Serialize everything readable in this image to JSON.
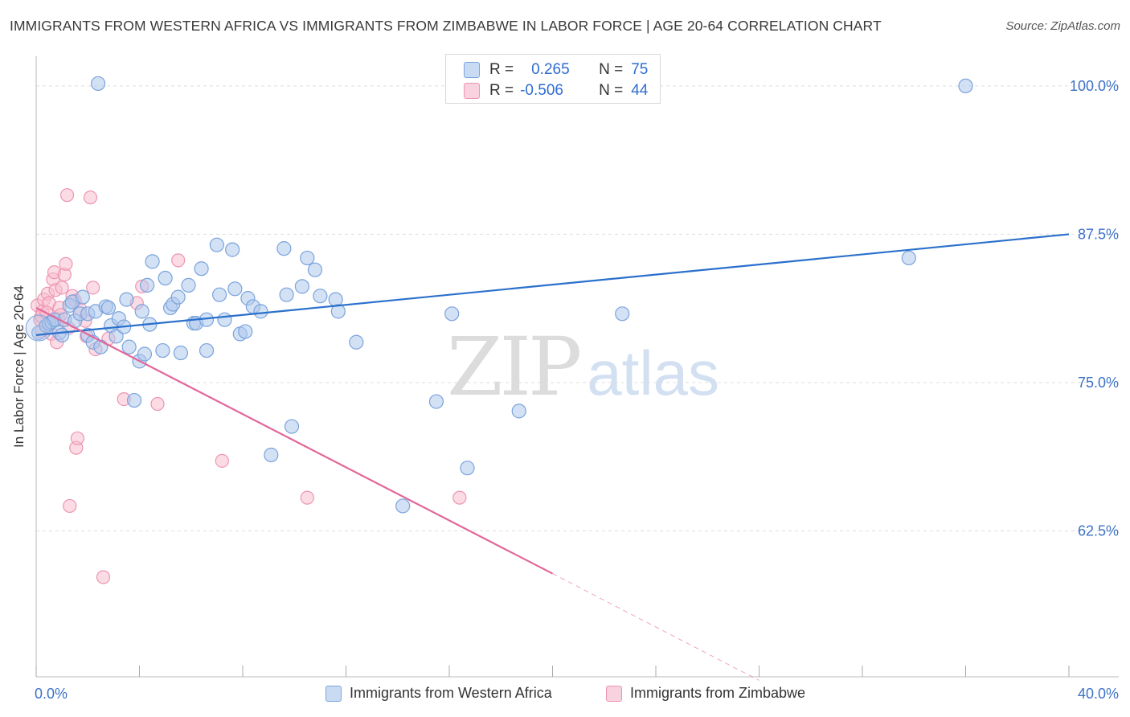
{
  "title": "IMMIGRANTS FROM WESTERN AFRICA VS IMMIGRANTS FROM ZIMBABWE IN LABOR FORCE | AGE 20-64 CORRELATION CHART",
  "source": "Source: ZipAtlas.com",
  "watermark": {
    "zip": "ZIP",
    "atlas": "atlas"
  },
  "stats": [
    {
      "r_label": "R =",
      "r_value": "0.265",
      "n_label": "N =",
      "n_value": "75"
    },
    {
      "r_label": "R =",
      "r_value": "-0.506",
      "n_label": "N =",
      "n_value": "44"
    }
  ],
  "colors": {
    "blue_fill": "#aec8ec",
    "blue_stroke": "#7aa3dd",
    "blue_line": "#2a70cc",
    "pink_fill": "#f7bfd0",
    "pink_stroke": "#ee94b1",
    "pink_line": "#e2679a",
    "axis_text": "#3d72c8",
    "grid": "#dddddd"
  },
  "chart_data": {
    "type": "scatter",
    "title": "IMMIGRANTS FROM WESTERN AFRICA VS IMMIGRANTS FROM ZIMBABWE IN LABOR FORCE | AGE 20-64 CORRELATION CHART",
    "xlabel": "",
    "ylabel": "In Labor Force | Age 20-64",
    "xlim": [
      0,
      40
    ],
    "ylim": [
      50.2,
      102.5
    ],
    "x_tick_labels": [
      "0.0%",
      "40.0%"
    ],
    "y_ticks": [
      62.5,
      75.0,
      87.5,
      100.0
    ],
    "y_tick_labels": [
      "62.5%",
      "75.0%",
      "87.5%",
      "100.0%"
    ],
    "grid": true,
    "legend": "bottom",
    "series": [
      {
        "name": "Immigrants from Western Africa",
        "color": "#aec8ec",
        "points": [
          [
            0.1,
            79.2
          ],
          [
            0.4,
            79.8
          ],
          [
            0.5,
            80.0
          ],
          [
            0.6,
            80.1
          ],
          [
            0.7,
            80.3
          ],
          [
            0.9,
            79.2
          ],
          [
            1.0,
            79.0
          ],
          [
            1.1,
            80.3
          ],
          [
            1.3,
            81.5
          ],
          [
            1.4,
            81.8
          ],
          [
            1.5,
            80.2
          ],
          [
            1.7,
            80.8
          ],
          [
            1.8,
            82.2
          ],
          [
            2.0,
            80.8
          ],
          [
            2.0,
            79.0
          ],
          [
            2.2,
            78.4
          ],
          [
            2.3,
            81.0
          ],
          [
            2.5,
            78.0
          ],
          [
            2.7,
            81.4
          ],
          [
            2.8,
            81.3
          ],
          [
            2.9,
            79.8
          ],
          [
            3.1,
            78.9
          ],
          [
            3.2,
            80.4
          ],
          [
            3.4,
            79.7
          ],
          [
            3.5,
            82.0
          ],
          [
            3.6,
            78.0
          ],
          [
            3.8,
            73.5
          ],
          [
            4.0,
            76.8
          ],
          [
            4.1,
            81.0
          ],
          [
            4.2,
            77.4
          ],
          [
            4.3,
            83.2
          ],
          [
            4.4,
            79.9
          ],
          [
            4.5,
            85.2
          ],
          [
            4.9,
            77.7
          ],
          [
            5.0,
            83.8
          ],
          [
            5.2,
            81.3
          ],
          [
            5.3,
            81.6
          ],
          [
            5.5,
            82.2
          ],
          [
            5.6,
            77.5
          ],
          [
            5.9,
            83.2
          ],
          [
            6.1,
            80.0
          ],
          [
            6.2,
            80.0
          ],
          [
            6.4,
            84.6
          ],
          [
            6.6,
            80.3
          ],
          [
            6.6,
            77.7
          ],
          [
            7.0,
            86.6
          ],
          [
            7.1,
            82.4
          ],
          [
            7.3,
            80.3
          ],
          [
            7.6,
            86.2
          ],
          [
            7.7,
            82.9
          ],
          [
            7.9,
            79.1
          ],
          [
            8.1,
            79.3
          ],
          [
            8.2,
            82.1
          ],
          [
            8.4,
            81.4
          ],
          [
            8.7,
            81.0
          ],
          [
            9.1,
            68.9
          ],
          [
            9.6,
            86.3
          ],
          [
            9.7,
            82.4
          ],
          [
            9.9,
            71.3
          ],
          [
            10.3,
            83.1
          ],
          [
            10.5,
            85.5
          ],
          [
            10.8,
            84.5
          ],
          [
            11.0,
            82.3
          ],
          [
            11.6,
            82.0
          ],
          [
            11.7,
            81.0
          ],
          [
            12.4,
            78.4
          ],
          [
            14.2,
            64.6
          ],
          [
            15.5,
            73.4
          ],
          [
            16.1,
            80.8
          ],
          [
            16.7,
            67.8
          ],
          [
            18.7,
            72.6
          ],
          [
            22.7,
            80.8
          ],
          [
            33.8,
            85.5
          ],
          [
            36.0,
            100.0
          ],
          [
            2.4,
            100.2
          ]
        ],
        "trend": {
          "x": [
            0,
            40
          ],
          "y": [
            79.0,
            87.5
          ]
        }
      },
      {
        "name": "Immigrants from Zimbabwe",
        "color": "#f7bfd0",
        "points": [
          [
            0.05,
            81.5
          ],
          [
            0.15,
            80.3
          ],
          [
            0.2,
            79.3
          ],
          [
            0.25,
            81.0
          ],
          [
            0.3,
            82.0
          ],
          [
            0.35,
            79.8
          ],
          [
            0.45,
            82.5
          ],
          [
            0.5,
            81.7
          ],
          [
            0.6,
            79.1
          ],
          [
            0.65,
            83.7
          ],
          [
            0.7,
            84.3
          ],
          [
            0.75,
            82.8
          ],
          [
            0.8,
            78.4
          ],
          [
            0.85,
            80.4
          ],
          [
            0.9,
            81.3
          ],
          [
            1.0,
            83.0
          ],
          [
            1.1,
            84.1
          ],
          [
            1.15,
            85.0
          ],
          [
            1.2,
            90.8
          ],
          [
            1.3,
            64.6
          ],
          [
            1.4,
            82.3
          ],
          [
            1.5,
            81.9
          ],
          [
            1.55,
            69.5
          ],
          [
            1.6,
            70.3
          ],
          [
            1.7,
            81.2
          ],
          [
            1.9,
            80.2
          ],
          [
            1.95,
            78.9
          ],
          [
            2.1,
            90.6
          ],
          [
            2.2,
            83.0
          ],
          [
            2.3,
            77.8
          ],
          [
            2.6,
            58.6
          ],
          [
            2.8,
            78.7
          ],
          [
            3.4,
            73.6
          ],
          [
            3.9,
            81.7
          ],
          [
            4.1,
            83.1
          ],
          [
            4.7,
            73.2
          ],
          [
            5.5,
            85.3
          ],
          [
            7.2,
            68.4
          ],
          [
            10.5,
            65.3
          ],
          [
            16.4,
            65.3
          ],
          [
            0.2,
            80.6
          ],
          [
            0.4,
            80.9
          ],
          [
            0.95,
            80.7
          ],
          [
            1.25,
            79.6
          ]
        ],
        "trend": {
          "x": [
            0,
            20
          ],
          "y": [
            81.3,
            58.9
          ]
        },
        "trend_dashed": {
          "x": [
            20,
            28
          ],
          "y": [
            58.9,
            49.9
          ]
        }
      }
    ]
  }
}
